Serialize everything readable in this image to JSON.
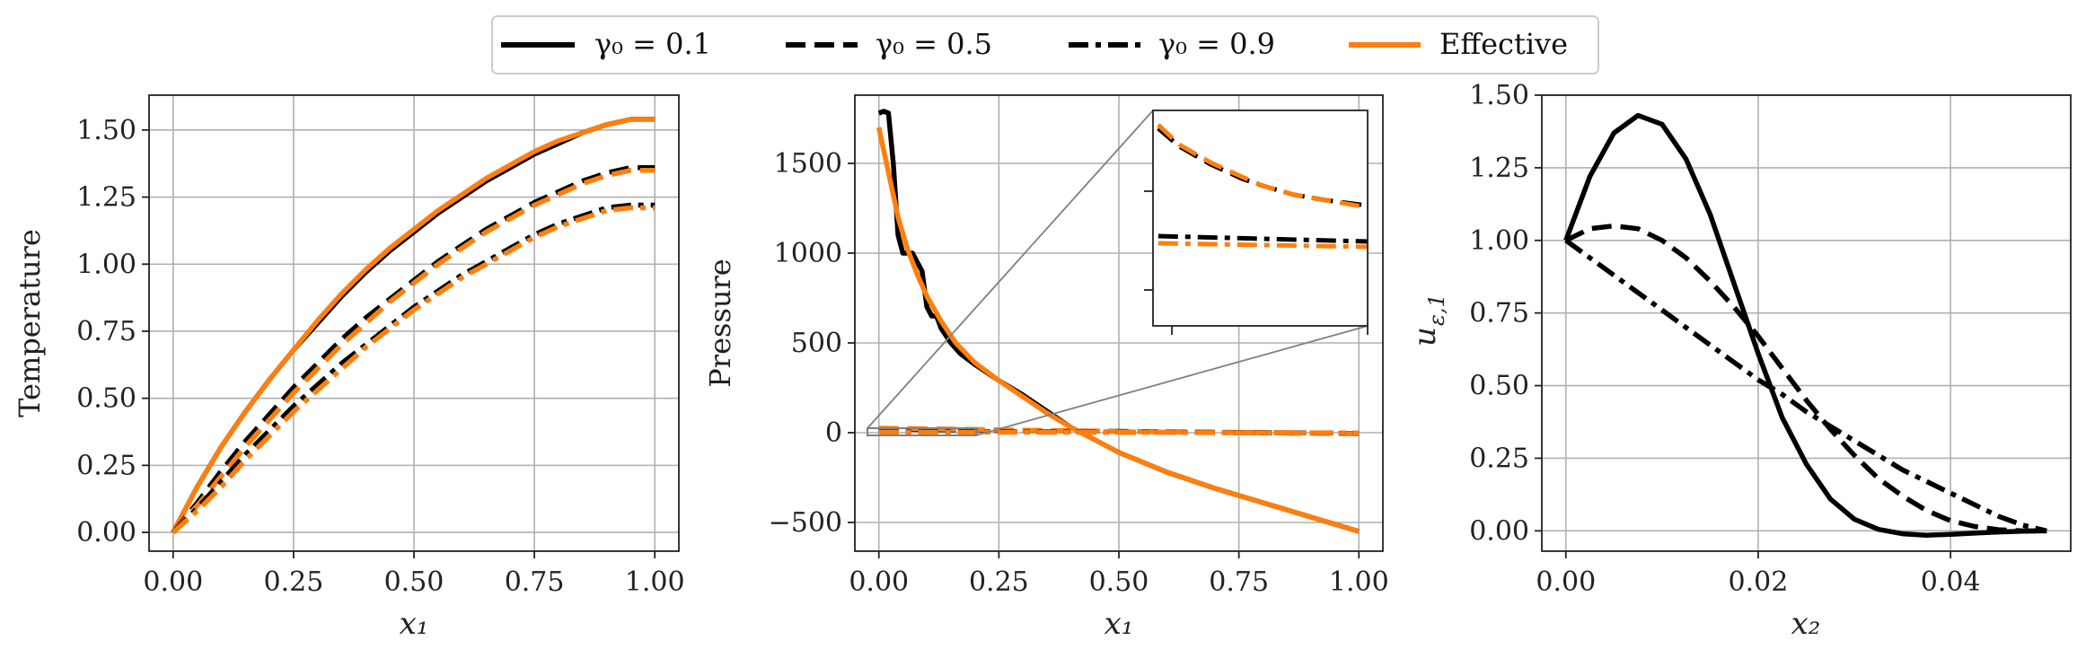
{
  "legend": {
    "entries": [
      {
        "label": "γ₀ = 0.1",
        "style": "solid",
        "color": "#000000"
      },
      {
        "label": "γ₀ = 0.5",
        "style": "dashed",
        "color": "#000000"
      },
      {
        "label": "γ₀ = 0.9",
        "style": "dashdot",
        "color": "#000000"
      },
      {
        "label": "Effective",
        "style": "solid",
        "color": "#ff7f0e"
      }
    ]
  },
  "colors": {
    "black": "#000000",
    "orange": "#ff7f0e",
    "grid": "#b0b0b0",
    "inset_connector": "#808080"
  },
  "chart_data": [
    {
      "type": "line",
      "title": "",
      "xlabel": "x₁",
      "ylabel": "Temperature",
      "xlim": [
        -0.05,
        1.05
      ],
      "ylim": [
        -0.07,
        1.63
      ],
      "xticks": [
        0,
        0.25,
        0.5,
        0.75,
        1
      ],
      "xtick_labels": [
        "0.00",
        "0.25",
        "0.50",
        "0.75",
        "1.00"
      ],
      "yticks": [
        0,
        0.25,
        0.5,
        0.75,
        1,
        1.25,
        1.5
      ],
      "ytick_labels": [
        "0.00",
        "0.25",
        "0.50",
        "0.75",
        "1.00",
        "1.25",
        "1.50"
      ],
      "grid": true,
      "x": [
        0,
        0.05,
        0.1,
        0.15,
        0.2,
        0.25,
        0.3,
        0.35,
        0.4,
        0.45,
        0.5,
        0.55,
        0.6,
        0.65,
        0.7,
        0.75,
        0.8,
        0.85,
        0.9,
        0.95,
        1.0
      ],
      "series": [
        {
          "name": "γ₀ = 0.1",
          "style": "solid",
          "color": "#000000",
          "values": [
            0,
            0.17,
            0.32,
            0.45,
            0.57,
            0.68,
            0.78,
            0.88,
            0.97,
            1.05,
            1.12,
            1.19,
            1.25,
            1.31,
            1.36,
            1.41,
            1.45,
            1.49,
            1.52,
            1.54,
            1.54
          ]
        },
        {
          "name": "Effective (γ₀ = 0.1)",
          "style": "solid",
          "color": "#ff7f0e",
          "values": [
            0,
            0.17,
            0.32,
            0.45,
            0.57,
            0.68,
            0.79,
            0.89,
            0.98,
            1.06,
            1.13,
            1.2,
            1.26,
            1.32,
            1.37,
            1.42,
            1.46,
            1.49,
            1.52,
            1.54,
            1.54
          ]
        },
        {
          "name": "γ₀ = 0.5",
          "style": "dashed",
          "color": "#000000",
          "values": [
            0,
            0.11,
            0.23,
            0.34,
            0.44,
            0.54,
            0.63,
            0.72,
            0.8,
            0.87,
            0.94,
            1.01,
            1.07,
            1.13,
            1.18,
            1.23,
            1.27,
            1.31,
            1.34,
            1.36,
            1.36
          ]
        },
        {
          "name": "Effective (γ₀ = 0.5)",
          "style": "dashed",
          "color": "#ff7f0e",
          "values": [
            0,
            0.1,
            0.21,
            0.32,
            0.42,
            0.52,
            0.61,
            0.7,
            0.78,
            0.86,
            0.93,
            1.0,
            1.06,
            1.12,
            1.17,
            1.22,
            1.26,
            1.3,
            1.33,
            1.35,
            1.35
          ]
        },
        {
          "name": "γ₀ = 0.9",
          "style": "dashdot",
          "color": "#000000",
          "values": [
            0,
            0.09,
            0.19,
            0.29,
            0.38,
            0.47,
            0.55,
            0.63,
            0.7,
            0.77,
            0.84,
            0.9,
            0.96,
            1.01,
            1.06,
            1.11,
            1.15,
            1.18,
            1.21,
            1.22,
            1.22
          ]
        },
        {
          "name": "Effective (γ₀ = 0.9)",
          "style": "dashdot",
          "color": "#ff7f0e",
          "values": [
            0,
            0.08,
            0.17,
            0.27,
            0.36,
            0.45,
            0.53,
            0.61,
            0.69,
            0.76,
            0.83,
            0.89,
            0.95,
            1.0,
            1.05,
            1.1,
            1.14,
            1.17,
            1.2,
            1.21,
            1.21
          ]
        }
      ]
    },
    {
      "type": "line",
      "title": "",
      "xlabel": "x₁",
      "ylabel": "Pressure",
      "xlim": [
        -0.05,
        1.05
      ],
      "ylim": [
        -660,
        1880
      ],
      "xticks": [
        0,
        0.25,
        0.5,
        0.75,
        1
      ],
      "xtick_labels": [
        "0.00",
        "0.25",
        "0.50",
        "0.75",
        "1.00"
      ],
      "yticks": [
        -500,
        0,
        500,
        1000,
        1500
      ],
      "ytick_labels": [
        "−500",
        "0",
        "500",
        "1000",
        "1500"
      ],
      "grid": true,
      "series": [
        {
          "name": "γ₀ = 0.1",
          "style": "solid",
          "color": "#000000",
          "x": [
            0,
            0.01,
            0.02,
            0.03,
            0.04,
            0.05,
            0.07,
            0.09,
            0.1,
            0.11,
            0.12,
            0.13,
            0.15,
            0.17,
            0.2,
            0.25,
            0.3,
            0.35,
            0.4,
            0.45,
            0.5,
            0.6,
            0.7,
            0.8,
            0.9,
            1.0
          ],
          "values": [
            1780,
            1790,
            1780,
            1500,
            1100,
            1000,
            1000,
            900,
            700,
            650,
            650,
            580,
            500,
            440,
            380,
            290,
            210,
            120,
            30,
            -40,
            -110,
            -220,
            -310,
            -390,
            -470,
            -550
          ]
        },
        {
          "name": "Effective (γ₀ = 0.1)",
          "style": "solid",
          "color": "#ff7f0e",
          "x": [
            0,
            0.02,
            0.04,
            0.06,
            0.08,
            0.1,
            0.13,
            0.16,
            0.2,
            0.25,
            0.3,
            0.35,
            0.4,
            0.45,
            0.5,
            0.6,
            0.7,
            0.8,
            0.9,
            1.0
          ],
          "values": [
            1700,
            1450,
            1200,
            1020,
            880,
            760,
            620,
            500,
            390,
            290,
            200,
            110,
            30,
            -40,
            -110,
            -220,
            -310,
            -390,
            -470,
            -550
          ]
        },
        {
          "name": "γ₀ = 0.5",
          "style": "dashed",
          "color": "#000000",
          "x": [
            0,
            0.2,
            0.4,
            0.6,
            0.8,
            1.0
          ],
          "values": [
            20,
            15,
            10,
            5,
            0,
            -5
          ]
        },
        {
          "name": "Effective (γ₀ = 0.5)",
          "style": "dashed",
          "color": "#ff7f0e",
          "x": [
            0,
            0.2,
            0.4,
            0.6,
            0.8,
            1.0
          ],
          "values": [
            25,
            18,
            10,
            4,
            -2,
            -6
          ]
        },
        {
          "name": "γ₀ = 0.9",
          "style": "dashdot",
          "color": "#000000",
          "x": [
            0,
            0.2,
            0.4,
            0.6,
            0.8,
            1.0
          ],
          "values": [
            8,
            6,
            4,
            2,
            0,
            -2
          ]
        },
        {
          "name": "Effective (γ₀ = 0.9)",
          "style": "dashdot",
          "color": "#ff7f0e",
          "x": [
            0,
            0.2,
            0.4,
            0.6,
            0.8,
            1.0
          ],
          "values": [
            4,
            3,
            2,
            1,
            0,
            -1
          ]
        }
      ],
      "inset": {
        "xlim": [
          -0.005,
          0.2
        ],
        "ylim": [
          -40,
          80
        ],
        "series": [
          {
            "name": "γ₀ = 0.5",
            "style": "dashed",
            "color": "#000000",
            "x": [
              0.0,
              0.02,
              0.05,
              0.08,
              0.1,
              0.13,
              0.16,
              0.2
            ],
            "values": [
              70,
              60,
              50,
              42,
              38,
              33,
              30,
              27
            ]
          },
          {
            "name": "Effective (γ₀ = 0.5)",
            "style": "dashed",
            "color": "#ff7f0e",
            "x": [
              0.0,
              0.02,
              0.05,
              0.08,
              0.1,
              0.13,
              0.16,
              0.2
            ],
            "values": [
              72,
              61,
              51,
              43,
              38,
              33,
              30,
              26
            ]
          },
          {
            "name": "γ₀ = 0.9",
            "style": "dashdot",
            "color": "#000000",
            "x": [
              0.0,
              0.1,
              0.2
            ],
            "values": [
              10,
              8.5,
              7
            ]
          },
          {
            "name": "Effective (γ₀ = 0.9)",
            "style": "dashdot",
            "color": "#ff7f0e",
            "x": [
              0.0,
              0.1,
              0.2
            ],
            "values": [
              6,
              5,
              4
            ]
          }
        ]
      }
    },
    {
      "type": "line",
      "title": "",
      "xlabel": "x₂",
      "ylabel": "u_{ε,1}",
      "xlim": [
        -0.0025,
        0.0525
      ],
      "ylim": [
        -0.07,
        1.5
      ],
      "xticks": [
        0,
        0.02,
        0.04
      ],
      "xtick_labels": [
        "0.00",
        "0.02",
        "0.04"
      ],
      "yticks": [
        0,
        0.25,
        0.5,
        0.75,
        1,
        1.25,
        1.5
      ],
      "ytick_labels": [
        "0.00",
        "0.25",
        "0.50",
        "0.75",
        "1.00",
        "1.25",
        "1.50"
      ],
      "grid": true,
      "x": [
        0,
        0.0025,
        0.005,
        0.0075,
        0.01,
        0.0125,
        0.015,
        0.0175,
        0.02,
        0.0225,
        0.025,
        0.0275,
        0.03,
        0.0325,
        0.035,
        0.0375,
        0.04,
        0.0425,
        0.045,
        0.0475,
        0.05
      ],
      "series": [
        {
          "name": "γ₀ = 0.1",
          "style": "solid",
          "color": "#000000",
          "values": [
            1.0,
            1.22,
            1.37,
            1.43,
            1.4,
            1.28,
            1.09,
            0.85,
            0.61,
            0.39,
            0.23,
            0.11,
            0.04,
            0.005,
            -0.01,
            -0.015,
            -0.012,
            -0.008,
            -0.004,
            -0.001,
            0.0
          ]
        },
        {
          "name": "γ₀ = 0.5",
          "style": "dashed",
          "color": "#000000",
          "values": [
            1.0,
            1.04,
            1.05,
            1.04,
            1.0,
            0.94,
            0.86,
            0.77,
            0.67,
            0.56,
            0.45,
            0.35,
            0.26,
            0.18,
            0.12,
            0.07,
            0.035,
            0.015,
            0.004,
            0.0,
            0.0
          ]
        },
        {
          "name": "γ₀ = 0.9",
          "style": "dashdot",
          "color": "#000000",
          "values": [
            1.0,
            0.94,
            0.88,
            0.82,
            0.76,
            0.7,
            0.64,
            0.58,
            0.52,
            0.47,
            0.41,
            0.36,
            0.31,
            0.26,
            0.21,
            0.17,
            0.13,
            0.09,
            0.05,
            0.02,
            0.0
          ]
        }
      ]
    }
  ]
}
